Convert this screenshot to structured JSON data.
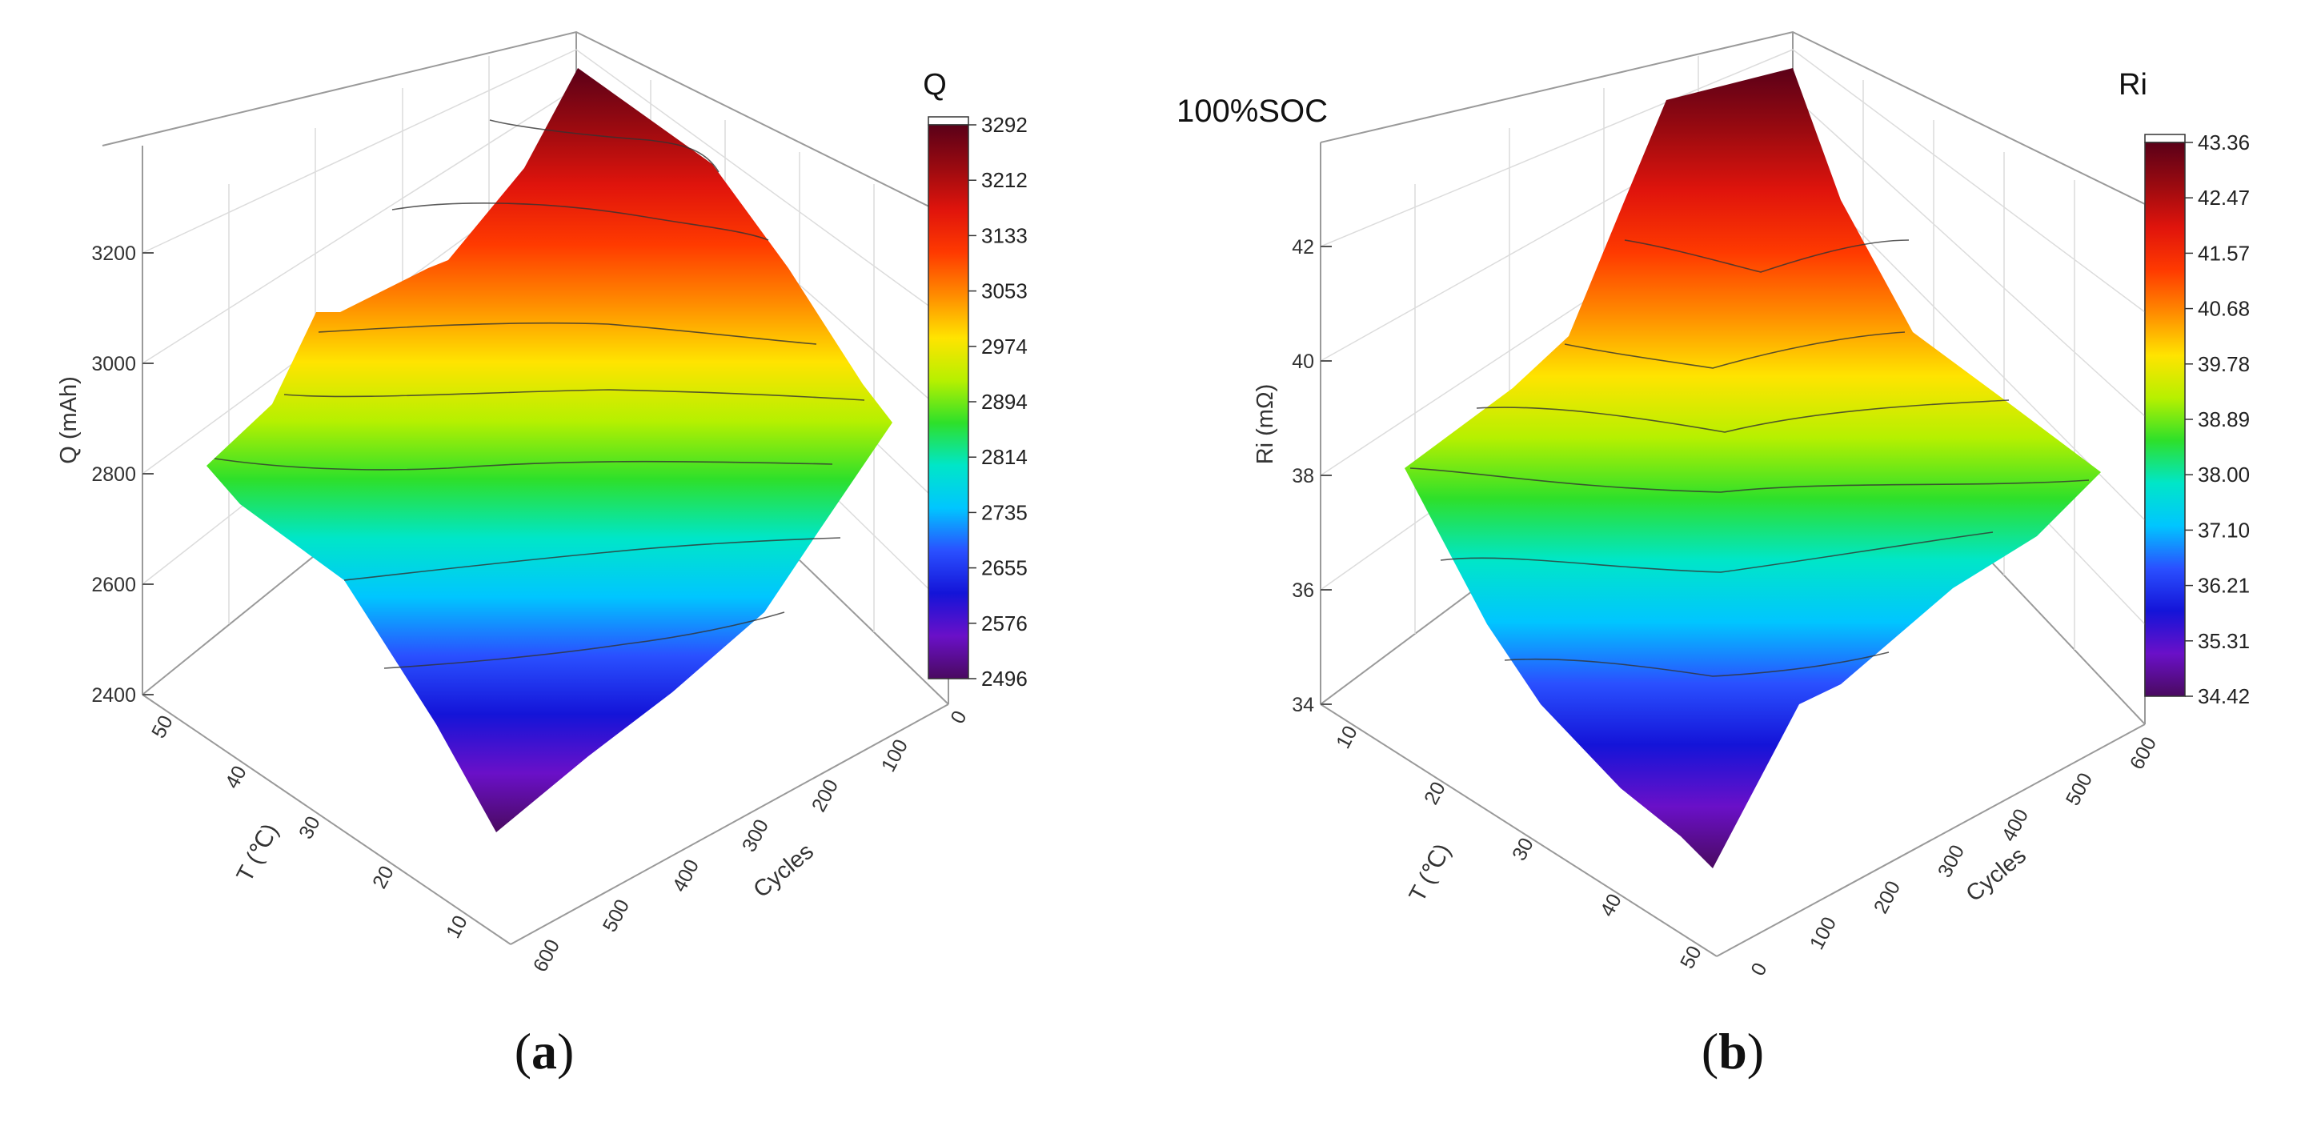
{
  "chart_data": [
    {
      "type": "surface3d",
      "panel_label": "a",
      "title": "",
      "zlabel": "Q (mAh)",
      "xlabel": "T (℃)",
      "ylabel": "Cycles",
      "x_ticks": [
        "50",
        "40",
        "30",
        "20",
        "10"
      ],
      "y_ticks": [
        "600",
        "500",
        "400",
        "300",
        "200",
        "100",
        "0"
      ],
      "z_ticks": [
        "2400",
        "2600",
        "2800",
        "3000",
        "3200"
      ],
      "zlim": [
        2400,
        3300
      ],
      "colorbar": {
        "title": "Q",
        "ticks": [
          "3292",
          "3212",
          "3133",
          "3053",
          "2974",
          "2894",
          "2814",
          "2735",
          "2655",
          "2576",
          "2496"
        ]
      },
      "contour_lines": 7,
      "grid": true
    },
    {
      "type": "surface3d",
      "panel_label": "b",
      "title": "",
      "annotation": "100%SOC",
      "zlabel": "Ri (mΩ)",
      "xlabel": "T (℃)",
      "ylabel": "Cycles",
      "x_ticks": [
        "10",
        "20",
        "30",
        "40",
        "50"
      ],
      "y_ticks": [
        "0",
        "100",
        "200",
        "300",
        "400",
        "500",
        "600"
      ],
      "z_ticks": [
        "34",
        "36",
        "38",
        "40",
        "42"
      ],
      "zlim": [
        34,
        43.5
      ],
      "colorbar": {
        "title": "Ri",
        "ticks": [
          "43.36",
          "42.47",
          "41.57",
          "40.68",
          "39.78",
          "38.89",
          "38.00",
          "37.10",
          "36.21",
          "35.31",
          "34.42"
        ]
      },
      "contour_lines": 6,
      "grid": true
    }
  ],
  "colors": {
    "colormap": [
      "#5a0018",
      "#9a0a10",
      "#e0140c",
      "#ff3a00",
      "#ff8c00",
      "#ffe400",
      "#b6f000",
      "#2ee02a",
      "#00e6c8",
      "#00c6ff",
      "#2a50ff",
      "#1414d8",
      "#6a10c8",
      "#4a0a60"
    ]
  }
}
